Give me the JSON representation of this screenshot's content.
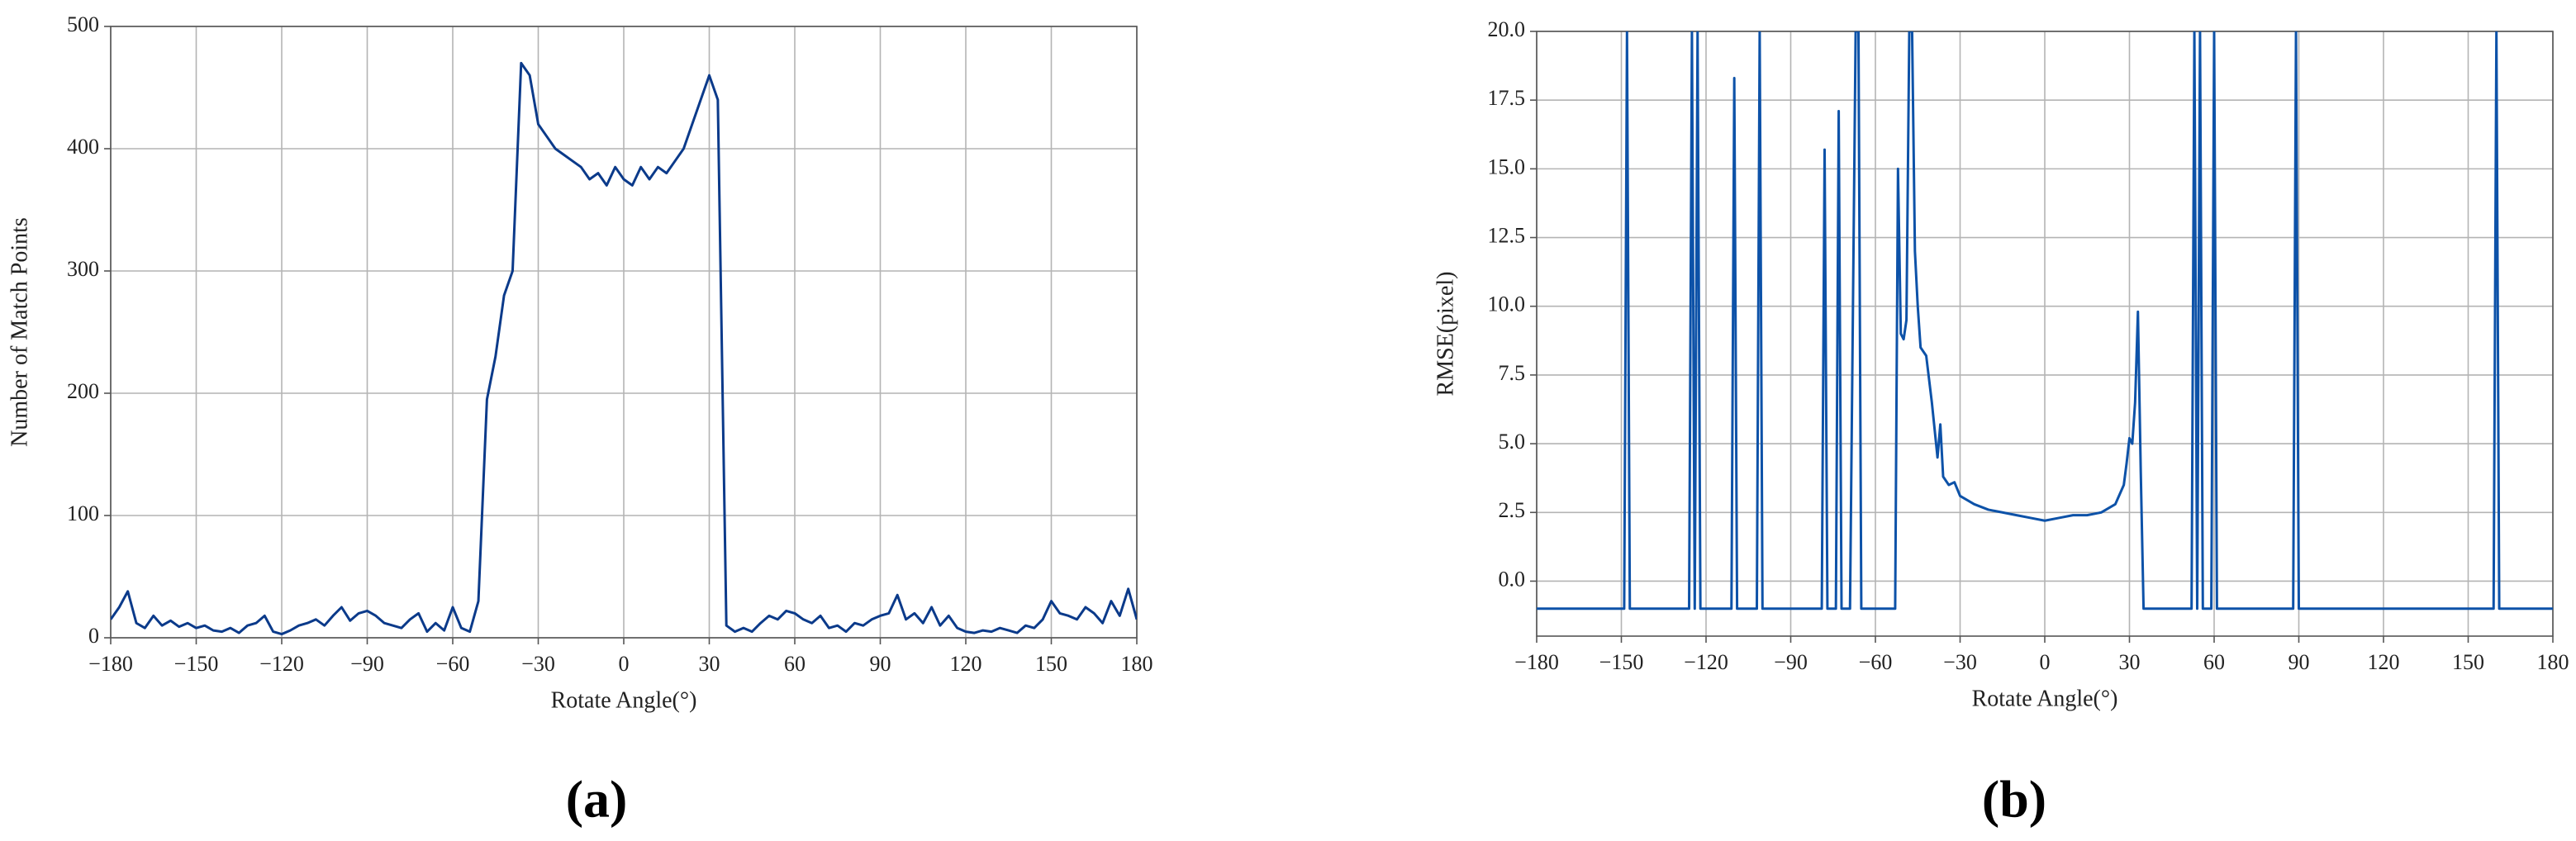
{
  "chart_data": [
    {
      "type": "line",
      "panel_label": "(a)",
      "xlabel": "Rotate Angle(°)",
      "ylabel": "Number of Match Points",
      "color": "#0b3a8a",
      "grid": true,
      "xlim": [
        -180,
        180
      ],
      "ylim": [
        0,
        500
      ],
      "xticks": [
        {
          "value": -180,
          "label": "−180"
        },
        {
          "value": -150,
          "label": "−150"
        },
        {
          "value": -120,
          "label": "−120"
        },
        {
          "value": -90,
          "label": "−90"
        },
        {
          "value": -60,
          "label": "−60"
        },
        {
          "value": -30,
          "label": "−30"
        },
        0,
        30,
        60,
        90,
        120,
        150,
        180
      ],
      "yticks": [
        0,
        100,
        200,
        300,
        400,
        500
      ],
      "x": [
        -180,
        -177,
        -174,
        -171,
        -168,
        -165,
        -162,
        -159,
        -156,
        -153,
        -150,
        -147,
        -144,
        -141,
        -138,
        -135,
        -132,
        -129,
        -126,
        -123,
        -120,
        -117,
        -114,
        -111,
        -108,
        -105,
        -102,
        -99,
        -96,
        -93,
        -90,
        -87,
        -84,
        -81,
        -78,
        -75,
        -72,
        -69,
        -66,
        -63,
        -60,
        -57,
        -54,
        -51,
        -48,
        -45,
        -42,
        -39,
        -36,
        -33,
        -30,
        -27,
        -24,
        -21,
        -18,
        -15,
        -12,
        -9,
        -6,
        -3,
        0,
        3,
        6,
        9,
        12,
        15,
        18,
        21,
        24,
        27,
        30,
        33,
        36,
        39,
        42,
        45,
        48,
        51,
        54,
        57,
        60,
        63,
        66,
        69,
        72,
        75,
        78,
        81,
        84,
        87,
        90,
        93,
        96,
        99,
        102,
        105,
        108,
        111,
        114,
        117,
        120,
        123,
        126,
        129,
        132,
        135,
        138,
        141,
        144,
        147,
        150,
        153,
        156,
        159,
        162,
        165,
        168,
        171,
        174,
        177,
        180
      ],
      "values": [
        15,
        25,
        38,
        12,
        8,
        18,
        10,
        14,
        9,
        12,
        8,
        10,
        6,
        5,
        8,
        4,
        10,
        12,
        18,
        5,
        3,
        6,
        10,
        12,
        15,
        10,
        18,
        25,
        14,
        20,
        22,
        18,
        12,
        10,
        8,
        15,
        20,
        5,
        12,
        6,
        25,
        8,
        5,
        30,
        195,
        230,
        280,
        300,
        470,
        460,
        420,
        410,
        400,
        395,
        390,
        385,
        375,
        380,
        370,
        385,
        375,
        370,
        385,
        375,
        385,
        380,
        390,
        400,
        420,
        440,
        460,
        440,
        10,
        5,
        8,
        5,
        12,
        18,
        15,
        22,
        20,
        15,
        12,
        18,
        8,
        10,
        5,
        12,
        10,
        15,
        18,
        20,
        35,
        15,
        20,
        12,
        25,
        10,
        18,
        8,
        5,
        4,
        6,
        5,
        8,
        6,
        4,
        10,
        8,
        15,
        30,
        20,
        18,
        15,
        25,
        20,
        12,
        30,
        18,
        40,
        15
      ]
    },
    {
      "type": "line",
      "panel_label": "(b)",
      "xlabel": "Rotate Angle(°)",
      "ylabel": "RMSE(pixel)",
      "color": "#0d52a8",
      "grid": true,
      "xlim": [
        -180,
        180
      ],
      "ylim": [
        -2,
        20
      ],
      "xticks": [
        {
          "value": -180,
          "label": "−180"
        },
        {
          "value": -150,
          "label": "−150"
        },
        {
          "value": -120,
          "label": "−120"
        },
        {
          "value": -90,
          "label": "−90"
        },
        {
          "value": -60,
          "label": "−60"
        },
        {
          "value": -30,
          "label": "−30"
        },
        0,
        30,
        60,
        90,
        120,
        150,
        180
      ],
      "yticks": [
        {
          "value": 0,
          "label": "0.0"
        },
        2.5,
        {
          "value": 5,
          "label": "5.0"
        },
        7.5,
        {
          "value": 10,
          "label": "10.0"
        },
        12.5,
        {
          "value": 15,
          "label": "15.0"
        },
        17.5,
        {
          "value": 20,
          "label": "20.0"
        }
      ],
      "x": [
        -180,
        -149,
        -148,
        -147,
        -126,
        -125,
        -124,
        -123,
        -122,
        -111,
        -110,
        -109,
        -102,
        -101,
        -100,
        -79,
        -78,
        -77,
        -74,
        -73,
        -72,
        -69,
        -67,
        -66,
        -65,
        -53,
        -52,
        -51,
        -50,
        -49,
        -48,
        -47,
        -46,
        -45,
        -44,
        -42,
        -40,
        -38,
        -37,
        -36,
        -34,
        -32,
        -30,
        -25,
        -20,
        -15,
        -10,
        -5,
        0,
        5,
        10,
        15,
        20,
        25,
        28,
        29,
        30,
        31,
        32,
        33,
        34,
        35,
        52,
        53,
        54,
        55,
        56,
        59,
        60,
        61,
        88,
        89,
        90,
        159,
        160,
        161,
        180
      ],
      "values": [
        -1,
        -1,
        20,
        -1,
        -1,
        20,
        -1,
        20,
        -1,
        -1,
        18.3,
        -1,
        -1,
        20,
        -1,
        -1,
        15.7,
        -1,
        -1,
        17.1,
        -1,
        -1,
        20,
        20,
        -1,
        -1,
        15,
        9,
        8.8,
        9.5,
        20,
        20,
        12,
        10,
        8.5,
        8.2,
        6.5,
        4.5,
        5.7,
        3.8,
        3.5,
        3.6,
        3.1,
        2.8,
        2.6,
        2.5,
        2.4,
        2.3,
        2.2,
        2.3,
        2.4,
        2.4,
        2.5,
        2.8,
        3.5,
        4.3,
        5.2,
        5,
        6.5,
        9.8,
        4,
        -1,
        -1,
        20,
        -1,
        20,
        -1,
        -1,
        20,
        -1,
        -1,
        20,
        -1,
        -1,
        20,
        -1,
        -1
      ]
    }
  ]
}
